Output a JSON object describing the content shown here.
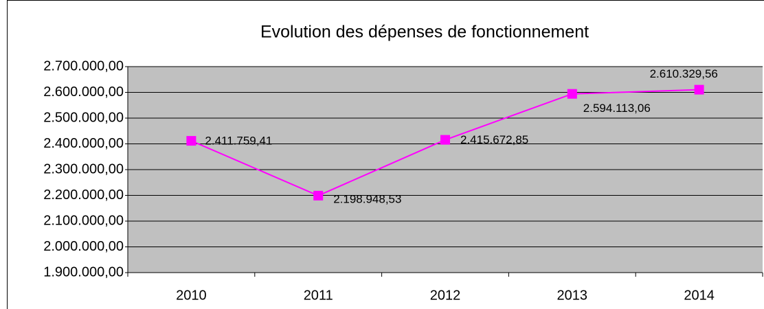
{
  "chart_data": {
    "type": "line",
    "title": "Evolution des dépenses de fonctionnement",
    "categories": [
      "2010",
      "2011",
      "2012",
      "2013",
      "2014"
    ],
    "series": [
      {
        "color": "#ff00ff",
        "values": [
          2411759.41,
          2198948.53,
          2415672.85,
          2594113.06,
          2610329.56
        ],
        "value_labels": [
          "2.411.759,41",
          "2.198.948,53",
          "2.415.672,85",
          "2.594.113,06",
          "2.610.329,56"
        ]
      }
    ],
    "ylim": [
      1900000,
      2700000
    ],
    "yticks": [
      {
        "value": 1900000,
        "label": "1.900.000,00"
      },
      {
        "value": 2000000,
        "label": "2.000.000,00"
      },
      {
        "value": 2100000,
        "label": "2.100.000,00"
      },
      {
        "value": 2200000,
        "label": "2.200.000,00"
      },
      {
        "value": 2300000,
        "label": "2.300.000,00"
      },
      {
        "value": 2400000,
        "label": "2.400.000,00"
      },
      {
        "value": 2500000,
        "label": "2.500.000,00"
      },
      {
        "value": 2600000,
        "label": "2.600.000,00"
      },
      {
        "value": 2700000,
        "label": "2.700.000,00"
      }
    ],
    "grid": true,
    "plot_background": "#c0c0c0"
  }
}
